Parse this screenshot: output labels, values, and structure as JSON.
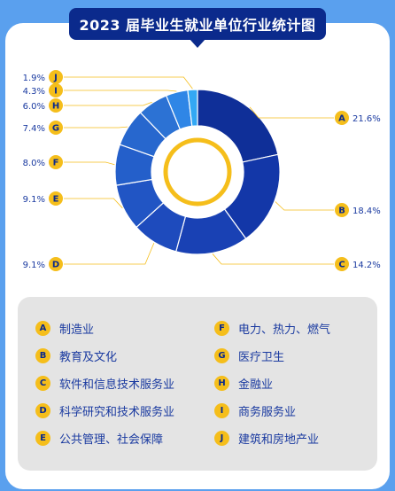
{
  "title": "2023 届毕业生就业单位行业统计图",
  "colors": {
    "segments": [
      "#0f2f98",
      "#1337a8",
      "#1941b4",
      "#1e4bbd",
      "#2155c4",
      "#245fca",
      "#2767ce",
      "#2c72d4",
      "#2f86e6",
      "#33a8f4"
    ],
    "center_ring": "#f5be1b",
    "badge": "#f5be1b",
    "badge_text": "#0b2a8c",
    "label_text": "#1a3aa0",
    "leader_line": "#f5be1b"
  },
  "chart_data": {
    "type": "pie",
    "style": "donut",
    "slices": [
      {
        "letter": "A",
        "label": "制造业",
        "value": 21.6,
        "display": "21.6%"
      },
      {
        "letter": "B",
        "label": "教育及文化",
        "value": 18.4,
        "display": "18.4%"
      },
      {
        "letter": "C",
        "label": "软件和信息技术服务业",
        "value": 14.2,
        "display": "14.2%"
      },
      {
        "letter": "D",
        "label": "科学研究和技术服务业",
        "value": 9.1,
        "display": "9.1%"
      },
      {
        "letter": "E",
        "label": "公共管理、社会保障",
        "value": 9.1,
        "display": "9.1%"
      },
      {
        "letter": "F",
        "label": "电力、热力、燃气",
        "value": 8.0,
        "display": "8.0%"
      },
      {
        "letter": "G",
        "label": "医疗卫生",
        "value": 7.4,
        "display": "7.4%"
      },
      {
        "letter": "H",
        "label": "金融业",
        "value": 6.0,
        "display": "6.0%"
      },
      {
        "letter": "I",
        "label": "商务服务业",
        "value": 4.3,
        "display": "4.3%"
      },
      {
        "letter": "J",
        "label": "建筑和房地产业",
        "value": 1.9,
        "display": "1.9%"
      }
    ]
  },
  "legend": {
    "left": [
      {
        "letter": "A",
        "label": "制造业"
      },
      {
        "letter": "B",
        "label": "教育及文化"
      },
      {
        "letter": "C",
        "label": "软件和信息技术服务业"
      },
      {
        "letter": "D",
        "label": "科学研究和技术服务业"
      },
      {
        "letter": "E",
        "label": "公共管理、社会保障"
      }
    ],
    "right": [
      {
        "letter": "F",
        "label": "电力、热力、燃气"
      },
      {
        "letter": "G",
        "label": "医疗卫生"
      },
      {
        "letter": "H",
        "label": "金融业"
      },
      {
        "letter": "I",
        "label": "商务服务业"
      },
      {
        "letter": "J",
        "label": "建筑和房地产业"
      }
    ]
  }
}
